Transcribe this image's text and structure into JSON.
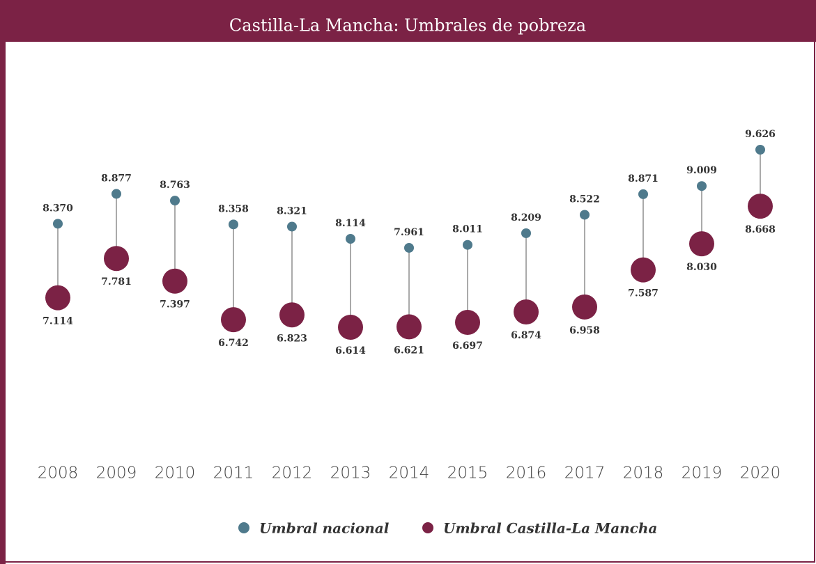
{
  "chart_data": {
    "type": "dumbbell",
    "title": "Castilla-La Mancha: Umbrales de pobreza",
    "categories": [
      "2008",
      "2009",
      "2010",
      "2011",
      "2012",
      "2013",
      "2014",
      "2015",
      "2016",
      "2017",
      "2018",
      "2019",
      "2020"
    ],
    "series": [
      {
        "name": "Umbral nacional",
        "color": "#4f7a8c",
        "values": [
          8370,
          8877,
          8763,
          8358,
          8321,
          8114,
          7961,
          8011,
          8209,
          8522,
          8871,
          9009,
          9626
        ],
        "value_labels": [
          "8.370",
          "8.877",
          "8.763",
          "8.358",
          "8.321",
          "8.114",
          "7.961",
          "8.011",
          "8.209",
          "8.522",
          "8.871",
          "9.009",
          "9.626"
        ]
      },
      {
        "name": "Umbral Castilla-La Mancha",
        "color": "#7b2245",
        "values": [
          7114,
          7781,
          7397,
          6742,
          6823,
          6614,
          6621,
          6697,
          6874,
          6958,
          7587,
          8030,
          8668
        ],
        "value_labels": [
          "7.114",
          "7.781",
          "7.397",
          "6.742",
          "6.823",
          "6.614",
          "6.621",
          "6.697",
          "6.874",
          "6.958",
          "7.587",
          "8.030",
          "8.668"
        ]
      }
    ]
  }
}
